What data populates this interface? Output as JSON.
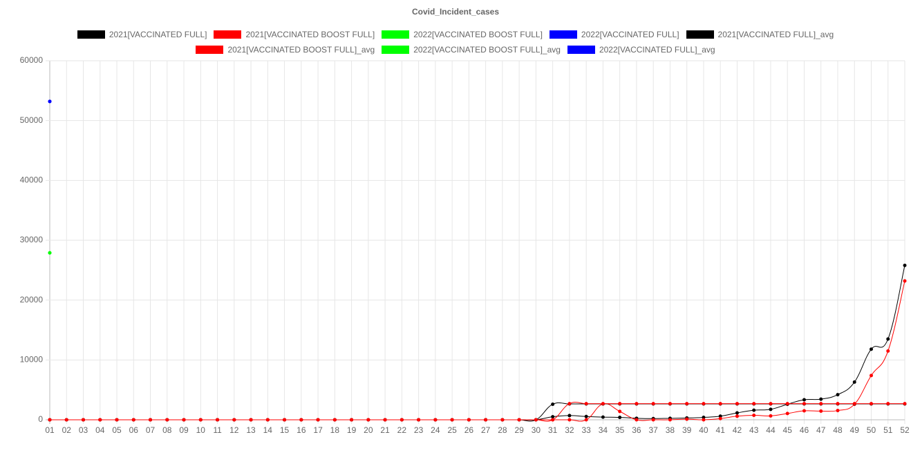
{
  "chart_data": {
    "type": "line",
    "title": "Covid_Incident_cases",
    "categories": [
      "01",
      "02",
      "03",
      "04",
      "05",
      "06",
      "07",
      "08",
      "09",
      "10",
      "11",
      "12",
      "13",
      "14",
      "15",
      "16",
      "17",
      "18",
      "19",
      "20",
      "21",
      "22",
      "23",
      "24",
      "25",
      "26",
      "27",
      "28",
      "29",
      "30",
      "31",
      "32",
      "33",
      "34",
      "35",
      "36",
      "37",
      "38",
      "39",
      "40",
      "41",
      "42",
      "43",
      "44",
      "45",
      "46",
      "47",
      "48",
      "49",
      "50",
      "51",
      "52"
    ],
    "ylim": [
      0,
      60000
    ],
    "yticks": [
      0,
      10000,
      20000,
      30000,
      40000,
      50000,
      60000
    ],
    "grid": true,
    "series": [
      {
        "name": "2021[VACCINATED FULL]",
        "color": "#000000",
        "values": [
          0,
          0,
          0,
          0,
          0,
          0,
          0,
          0,
          0,
          0,
          0,
          0,
          0,
          0,
          0,
          0,
          0,
          0,
          0,
          0,
          0,
          0,
          0,
          0,
          0,
          0,
          0,
          0,
          0,
          0,
          500,
          700,
          550,
          450,
          400,
          250,
          200,
          250,
          300,
          400,
          600,
          1150,
          1600,
          1750,
          2600,
          3350,
          3450,
          4200,
          6300,
          11800,
          13500,
          25800
        ]
      },
      {
        "name": "2021[VACCINATED BOOST FULL]",
        "color": "#ff0000",
        "values": [
          0,
          0,
          0,
          0,
          0,
          0,
          0,
          0,
          0,
          0,
          0,
          0,
          0,
          0,
          0,
          0,
          0,
          0,
          0,
          0,
          0,
          0,
          0,
          0,
          0,
          0,
          0,
          0,
          0,
          0,
          0,
          0,
          0,
          2650,
          1400,
          0,
          0,
          0,
          100,
          0,
          200,
          600,
          750,
          650,
          1050,
          1500,
          1450,
          1550,
          2600,
          7400,
          11500,
          23200
        ]
      },
      {
        "name": "2022[VACCINATED BOOST FULL]",
        "color": "#00ff00",
        "values": [
          27900,
          null,
          null,
          null,
          null,
          null,
          null,
          null,
          null,
          null,
          null,
          null,
          null,
          null,
          null,
          null,
          null,
          null,
          null,
          null,
          null,
          null,
          null,
          null,
          null,
          null,
          null,
          null,
          null,
          null,
          null,
          null,
          null,
          null,
          null,
          null,
          null,
          null,
          null,
          null,
          null,
          null,
          null,
          null,
          null,
          null,
          null,
          null,
          null,
          null,
          null,
          null
        ]
      },
      {
        "name": "2022[VACCINATED FULL]",
        "color": "#0000ff",
        "values": [
          53200,
          null,
          null,
          null,
          null,
          null,
          null,
          null,
          null,
          null,
          null,
          null,
          null,
          null,
          null,
          null,
          null,
          null,
          null,
          null,
          null,
          null,
          null,
          null,
          null,
          null,
          null,
          null,
          null,
          null,
          null,
          null,
          null,
          null,
          null,
          null,
          null,
          null,
          null,
          null,
          null,
          null,
          null,
          null,
          null,
          null,
          null,
          null,
          null,
          null,
          null,
          null
        ]
      },
      {
        "name": "2021[VACCINATED FULL]_avg",
        "color": "#000000",
        "values": [
          0,
          0,
          0,
          0,
          0,
          0,
          0,
          0,
          0,
          0,
          0,
          0,
          0,
          0,
          0,
          0,
          0,
          0,
          0,
          0,
          0,
          0,
          0,
          0,
          0,
          0,
          0,
          0,
          0,
          0,
          2600,
          2650,
          2650,
          2650,
          2650,
          2650,
          2650,
          2650,
          2650,
          2650,
          2650,
          2650,
          2650,
          2650,
          2650,
          2650,
          2650,
          2650,
          2650,
          2650,
          2650,
          2650
        ]
      },
      {
        "name": "2021[VACCINATED BOOST FULL]_avg",
        "color": "#ff0000",
        "values": [
          0,
          0,
          0,
          0,
          0,
          0,
          0,
          0,
          0,
          0,
          0,
          0,
          0,
          0,
          0,
          0,
          0,
          0,
          0,
          0,
          0,
          0,
          0,
          0,
          0,
          0,
          0,
          0,
          0,
          0,
          0,
          2700,
          2700,
          2700,
          2700,
          2700,
          2700,
          2700,
          2700,
          2700,
          2700,
          2700,
          2700,
          2700,
          2700,
          2700,
          2700,
          2700,
          2700,
          2700,
          2700,
          2700
        ]
      },
      {
        "name": "2022[VACCINATED BOOST FULL]_avg",
        "color": "#00ff00",
        "values": [
          27900,
          null,
          null,
          null,
          null,
          null,
          null,
          null,
          null,
          null,
          null,
          null,
          null,
          null,
          null,
          null,
          null,
          null,
          null,
          null,
          null,
          null,
          null,
          null,
          null,
          null,
          null,
          null,
          null,
          null,
          null,
          null,
          null,
          null,
          null,
          null,
          null,
          null,
          null,
          null,
          null,
          null,
          null,
          null,
          null,
          null,
          null,
          null,
          null,
          null,
          null,
          null
        ]
      },
      {
        "name": "2022[VACCINATED FULL]_avg",
        "color": "#0000ff",
        "values": [
          53200,
          null,
          null,
          null,
          null,
          null,
          null,
          null,
          null,
          null,
          null,
          null,
          null,
          null,
          null,
          null,
          null,
          null,
          null,
          null,
          null,
          null,
          null,
          null,
          null,
          null,
          null,
          null,
          null,
          null,
          null,
          null,
          null,
          null,
          null,
          null,
          null,
          null,
          null,
          null,
          null,
          null,
          null,
          null,
          null,
          null,
          null,
          null,
          null,
          null,
          null,
          null
        ]
      }
    ]
  }
}
